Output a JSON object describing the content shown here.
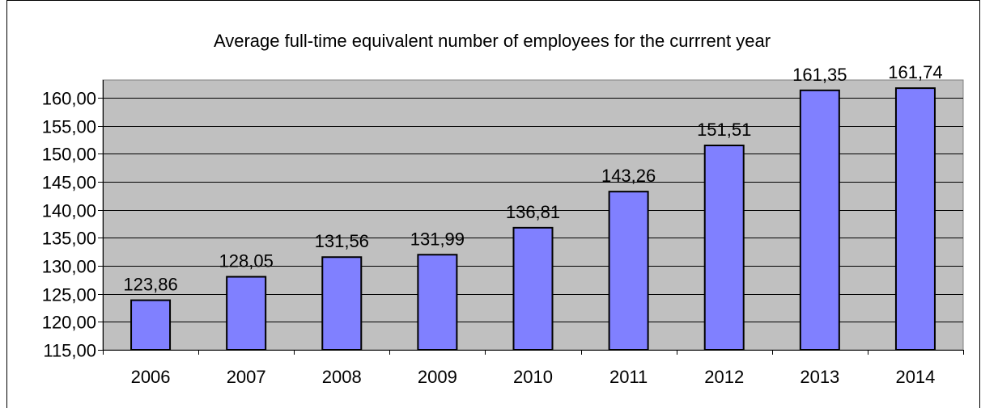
{
  "chart_data": {
    "type": "bar",
    "title": "Average full-time  equivalent number  of employees for the currrent year",
    "xlabel": "",
    "ylabel": "",
    "categories": [
      "2006",
      "2007",
      "2008",
      "2009",
      "2010",
      "2011",
      "2012",
      "2013",
      "2014"
    ],
    "values": [
      123.86,
      128.05,
      131.56,
      131.99,
      136.81,
      143.26,
      151.51,
      161.35,
      161.74
    ],
    "data_labels": [
      "123,86",
      "128,05",
      "131,56",
      "131,99",
      "136,81",
      "143,26",
      "151,51",
      "161,35",
      "161,74"
    ],
    "ylim": [
      115,
      160
    ],
    "yticks": [
      115,
      120,
      125,
      130,
      135,
      140,
      145,
      150,
      155,
      160
    ],
    "ytick_labels": [
      "115,00",
      "120,00",
      "125,00",
      "130,00",
      "135,00",
      "140,00",
      "145,00",
      "150,00",
      "155,00",
      "160,00"
    ],
    "grid": true,
    "colors": {
      "bar_fill": "#8080ff",
      "bar_stroke": "#000000",
      "plot_background": "#c0c0c0",
      "gridline": "#000000"
    }
  }
}
